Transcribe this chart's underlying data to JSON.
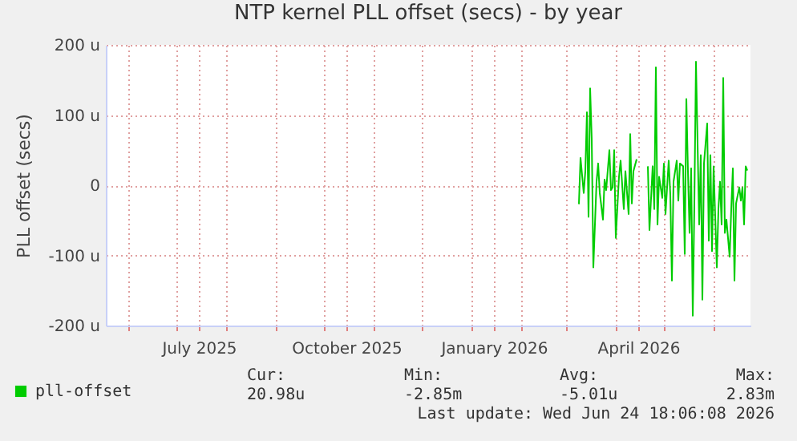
{
  "chart_data": {
    "type": "line",
    "title": "NTP kernel PLL offset (secs) - by year",
    "ylabel": "PLL offset (secs)",
    "xlim": [
      "2025-05-18",
      "2026-06-24"
    ],
    "xticks": [
      {
        "value": "2025-06-01",
        "label": null
      },
      {
        "value": "2025-07-01",
        "label": null
      },
      {
        "value": "2025-07-15",
        "label": "July 2025"
      },
      {
        "value": "2025-08-01",
        "label": null
      },
      {
        "value": "2025-09-01",
        "label": null
      },
      {
        "value": "2025-10-01",
        "label": null
      },
      {
        "value": "2025-10-15",
        "label": "October 2025"
      },
      {
        "value": "2025-11-01",
        "label": null
      },
      {
        "value": "2025-12-01",
        "label": null
      },
      {
        "value": "2026-01-01",
        "label": null
      },
      {
        "value": "2026-01-15",
        "label": "January 2026"
      },
      {
        "value": "2026-02-01",
        "label": null
      },
      {
        "value": "2026-03-01",
        "label": null
      },
      {
        "value": "2026-04-01",
        "label": null
      },
      {
        "value": "2026-04-15",
        "label": "April 2026"
      },
      {
        "value": "2026-05-01",
        "label": null
      },
      {
        "value": "2026-06-01",
        "label": null
      }
    ],
    "ylim": [
      -200,
      200
    ],
    "yticks": [
      {
        "value": -200,
        "label": "-200 u"
      },
      {
        "value": -100,
        "label": "-100 u"
      },
      {
        "value": 0,
        "label": "0"
      },
      {
        "value": 100,
        "label": "100 u"
      },
      {
        "value": 200,
        "label": "200 u"
      }
    ],
    "grid": true,
    "legend": "bottom",
    "x": [
      "2026-03-09",
      "2026-03-10",
      "2026-03-12",
      "2026-03-13",
      "2026-03-14",
      "2026-03-15",
      "2026-03-16",
      "2026-03-17",
      "2026-03-18",
      "2026-03-20",
      "2026-03-21",
      "2026-03-22",
      "2026-03-24",
      "2026-03-25",
      "2026-03-26",
      "2026-03-28",
      "2026-03-29",
      "2026-03-30",
      "2026-03-31",
      "2026-04-01",
      "2026-04-03",
      "2026-04-04",
      "2026-04-06",
      "2026-04-07",
      "2026-04-09",
      "2026-04-10",
      "2026-04-11",
      "2026-04-12",
      "2026-04-14",
      "2026-04-18",
      "2026-04-21",
      "2026-04-22",
      "2026-04-24",
      "2026-04-25",
      "2026-04-26",
      "2026-04-27",
      "2026-04-28",
      "2026-04-30",
      "2026-05-01",
      "2026-05-02",
      "2026-05-04",
      "2026-05-05",
      "2026-05-06",
      "2026-05-07",
      "2026-05-09",
      "2026-05-10",
      "2026-05-11",
      "2026-05-13",
      "2026-05-14",
      "2026-05-15",
      "2026-05-16",
      "2026-05-17",
      "2026-05-18",
      "2026-05-19",
      "2026-05-20",
      "2026-05-21",
      "2026-05-23",
      "2026-05-24",
      "2026-05-25",
      "2026-05-26",
      "2026-05-28",
      "2026-05-29",
      "2026-05-30",
      "2026-05-31",
      "2026-06-01",
      "2026-06-03",
      "2026-06-04",
      "2026-06-05",
      "2026-06-06",
      "2026-06-07",
      "2026-06-08",
      "2026-06-09",
      "2026-06-11",
      "2026-06-12",
      "2026-06-13",
      "2026-06-14",
      "2026-06-15",
      "2026-06-17",
      "2026-06-18",
      "2026-06-19",
      "2026-06-20",
      "2026-06-21",
      "2026-06-22"
    ],
    "series": [
      {
        "name": "pll-offset",
        "color": "#00cc00",
        "values": [
          -27,
          39,
          -11,
          20,
          104,
          -45,
          138,
          66,
          -117,
          5,
          31,
          -11,
          -49,
          8,
          -7,
          50,
          -7,
          -3,
          50,
          -75,
          12,
          35,
          -34,
          20,
          -41,
          73,
          -26,
          20,
          37,
          null,
          27,
          -64,
          27,
          -34,
          168,
          -56,
          12,
          -18,
          31,
          -41,
          35,
          -14,
          -136,
          5,
          35,
          -22,
          31,
          27,
          -98,
          123,
          20,
          -68,
          24,
          -186,
          -26,
          176,
          -56,
          43,
          -163,
          31,
          88,
          -79,
          43,
          -94,
          27,
          -117,
          -34,
          5,
          -56,
          153,
          -68,
          -49,
          -102,
          -34,
          24,
          -136,
          -26,
          -3,
          -22,
          -3,
          -56,
          27,
          21
        ]
      }
    ],
    "annotations": [
      "Cur:",
      "Min:",
      "Avg:",
      "Max:",
      "20.98u",
      "-2.85m",
      "-5.01u",
      "2.83m",
      "Last update: Wed Jun 24 18:06:08 2026"
    ]
  }
}
